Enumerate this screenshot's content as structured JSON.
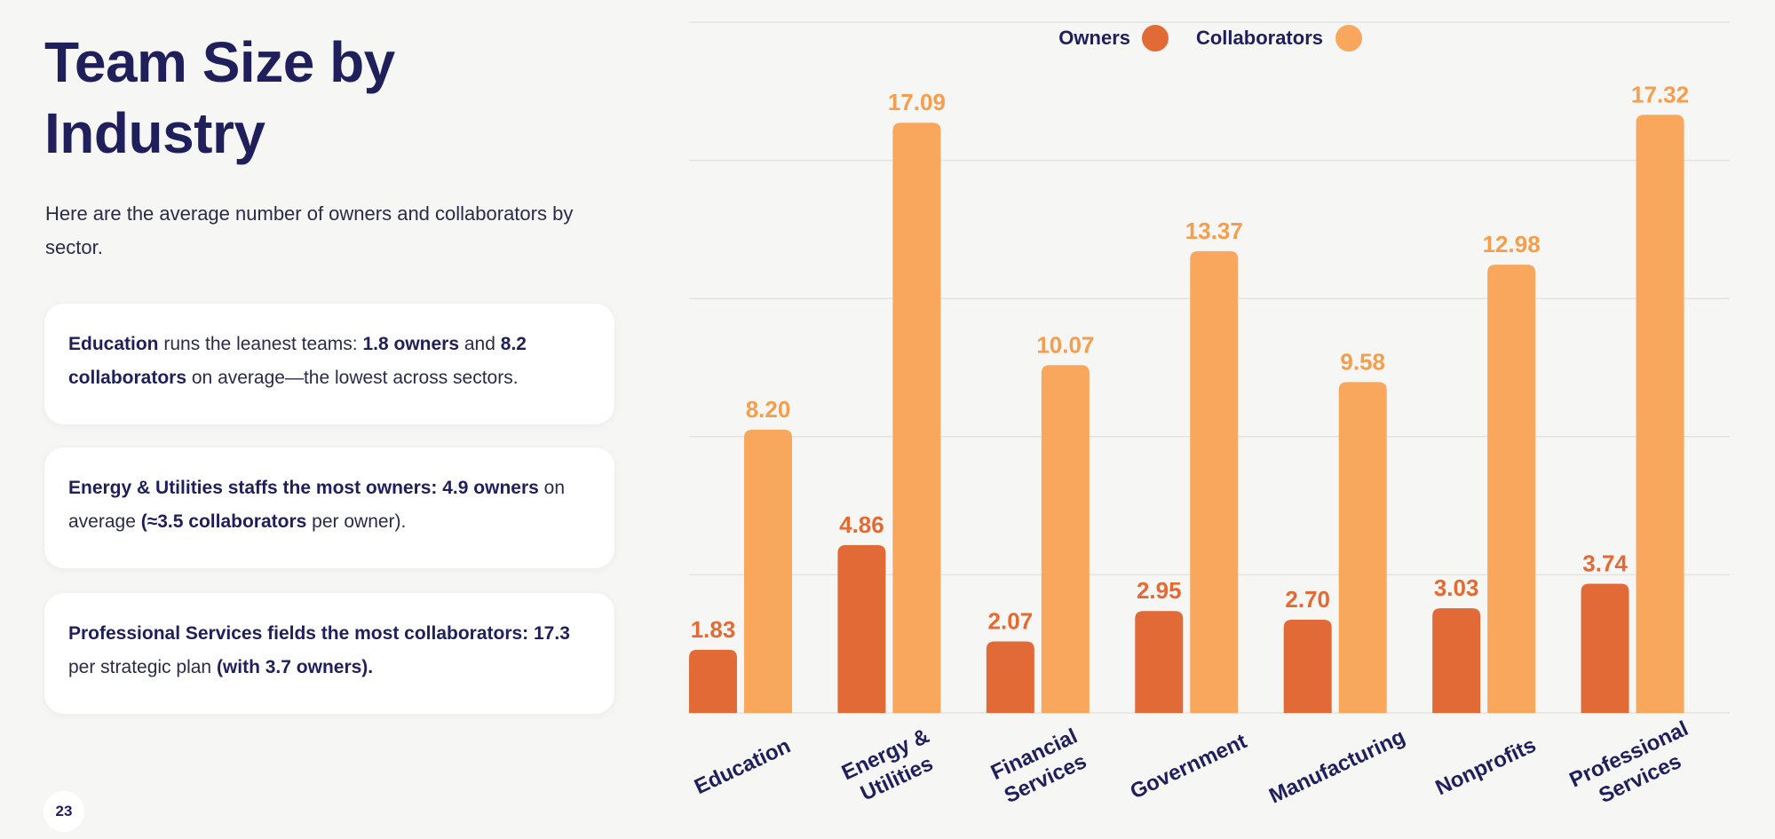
{
  "title": "Team Size by\nIndustry",
  "subtitle": "Here are the average number of owners and collaborators by sector.",
  "cards": [
    {
      "parts": [
        {
          "text": "Education",
          "bold": true
        },
        {
          "text": " runs the leanest teams: ",
          "bold": false
        },
        {
          "text": "1.8 owners",
          "bold": true
        },
        {
          "text": " and ",
          "bold": false
        },
        {
          "text": "8.2 collaborators",
          "bold": true
        },
        {
          "text": " on average—the lowest across sectors.",
          "bold": false
        }
      ]
    },
    {
      "parts": [
        {
          "text": "Energy & Utilities staffs the most owners: 4.9 owners",
          "bold": true
        },
        {
          "text": " on average ",
          "bold": false
        },
        {
          "text": "(≈3.5 collaborators",
          "bold": true
        },
        {
          "text": " per owner).",
          "bold": false
        }
      ]
    },
    {
      "parts": [
        {
          "text": "Professional Services fields the most collaborators: 17.3",
          "bold": true
        },
        {
          "text": " per strategic plan ",
          "bold": false
        },
        {
          "text": "(with 3.7 owners).",
          "bold": true
        }
      ]
    }
  ],
  "page_number": "23",
  "colors": {
    "owners": "#e26a37",
    "collaborators": "#f8a75c",
    "label_owners": "#e46a32",
    "label_collaborators": "#f59e4e",
    "text": "#1f1f5c",
    "grid": "#e3e3e3"
  },
  "chart_data": {
    "type": "bar",
    "categories": [
      [
        "Education"
      ],
      [
        "Energy &",
        "Utilities"
      ],
      [
        "Financial",
        "Services"
      ],
      [
        "Government"
      ],
      [
        "Manufacturing"
      ],
      [
        "Nonprofits"
      ],
      [
        "Professional",
        "Services"
      ]
    ],
    "series": [
      {
        "name": "Owners",
        "values": [
          1.83,
          4.86,
          2.07,
          2.95,
          2.7,
          3.03,
          3.74
        ],
        "labels": [
          "1.83",
          "4.86",
          "2.07",
          "2.95",
          "2.70",
          "3.03",
          "3.74"
        ]
      },
      {
        "name": "Collaborators",
        "values": [
          8.2,
          17.09,
          10.07,
          13.37,
          9.58,
          12.98,
          17.32
        ],
        "labels": [
          "8.20",
          "17.09",
          "10.07",
          "13.37",
          "9.58",
          "12.98",
          "17.32"
        ]
      }
    ],
    "ylim": [
      0,
      20
    ],
    "grid": true,
    "legend": "top-center"
  }
}
